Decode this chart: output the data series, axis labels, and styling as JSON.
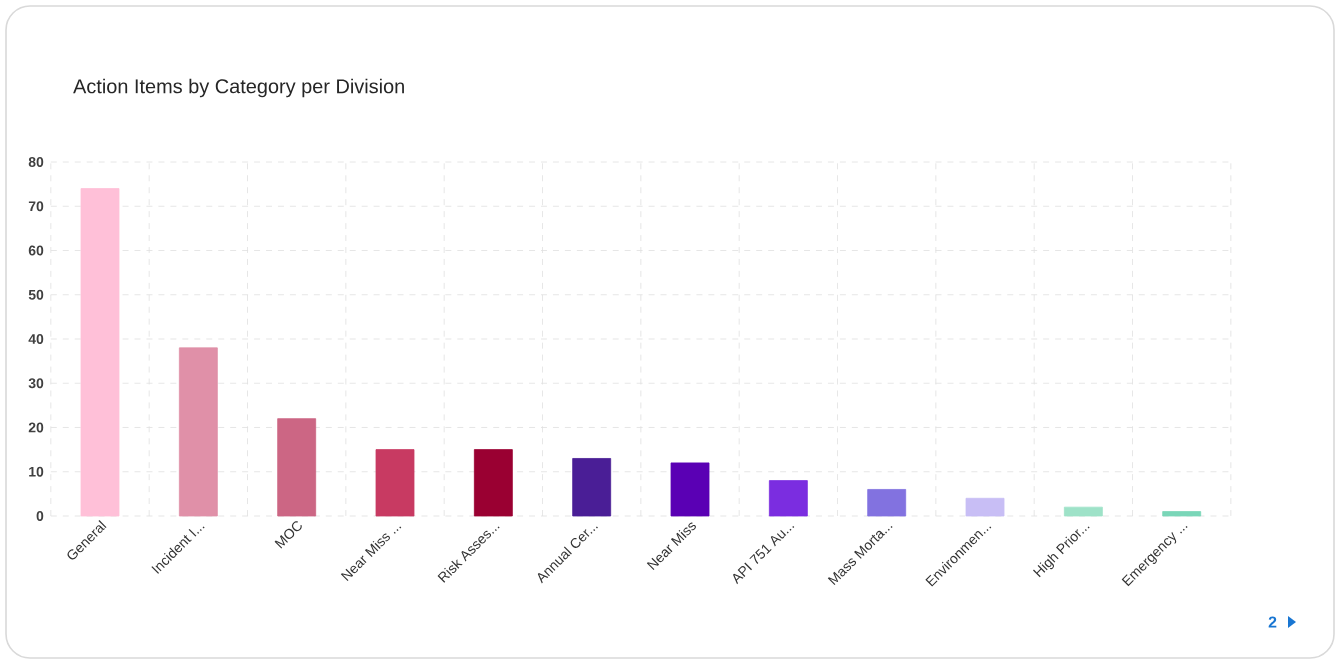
{
  "chart_data": {
    "type": "bar",
    "title": "Action Items by Category per Division",
    "categories": [
      "General",
      "Incident I...",
      "MOC",
      "Near Miss ...",
      "Risk Asses...",
      "Annual Cer...",
      "Near Miss",
      "API 751 Au...",
      "Mass Morta...",
      "Environmen...",
      "High Prior...",
      "Emergency ..."
    ],
    "values": [
      74,
      38,
      22,
      15,
      15,
      13,
      12,
      8,
      6,
      4,
      2,
      1
    ],
    "colors": [
      "#ffc0d8",
      "#e090a8",
      "#cc6684",
      "#c83a62",
      "#9a0032",
      "#4a1e96",
      "#5a00b4",
      "#7b2de0",
      "#8272e0",
      "#c8bef5",
      "#9ee2c8",
      "#7ad6b8"
    ],
    "ylim": [
      0,
      80
    ],
    "yticks": [
      0,
      10,
      20,
      30,
      40,
      50,
      60,
      70,
      80
    ],
    "grid": true,
    "annotations": [
      "2"
    ]
  }
}
